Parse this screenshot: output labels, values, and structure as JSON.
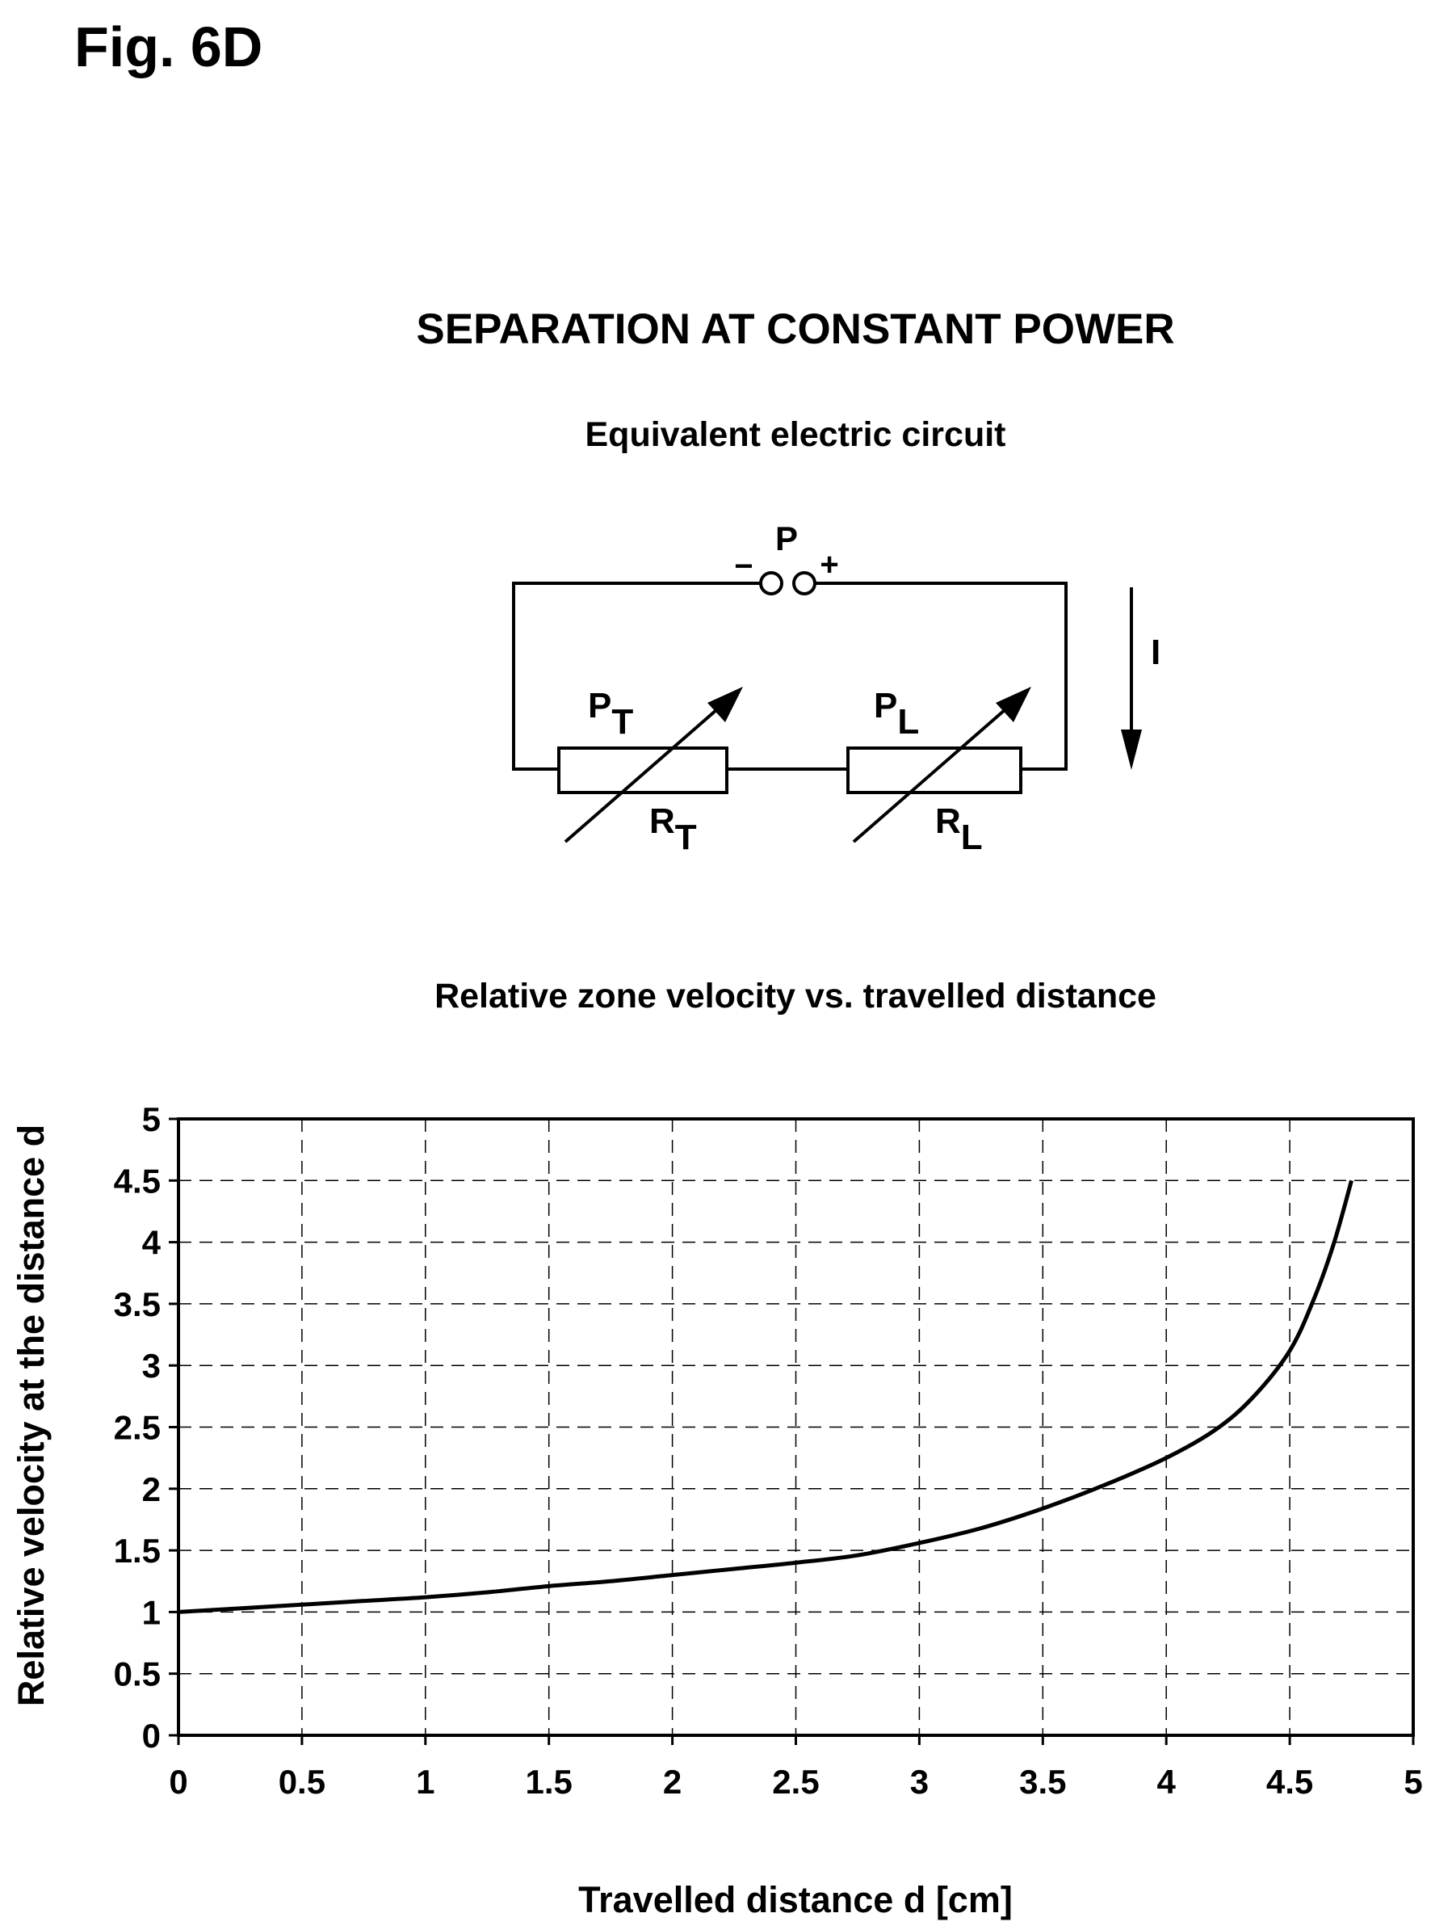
{
  "figure_label": "Fig. 6D",
  "heading": "SEPARATION AT CONSTANT POWER",
  "circuit": {
    "title": "Equivalent electric circuit",
    "source_label": "P",
    "minus_sign": "−",
    "plus_sign": "+",
    "current_label": "I",
    "resistor_t": {
      "power_main": "P",
      "power_sub": "T",
      "res_main": "R",
      "res_sub": "T"
    },
    "resistor_l": {
      "power_main": "P",
      "power_sub": "L",
      "res_main": "R",
      "res_sub": "L"
    }
  },
  "chart_data": {
    "type": "line",
    "title": "Relative zone velocity vs. travelled distance",
    "xlabel": "Travelled distance d [cm]",
    "ylabel": "Relative velocity at the distance d",
    "xlim": [
      0,
      5
    ],
    "ylim": [
      0,
      5
    ],
    "xticks": [
      "0",
      "0.5",
      "1",
      "1.5",
      "2",
      "2.5",
      "3",
      "3.5",
      "4",
      "4.5",
      "5"
    ],
    "yticks": [
      "0",
      "0.5",
      "1",
      "1.5",
      "2",
      "2.5",
      "3",
      "3.5",
      "4",
      "4.5",
      "5"
    ],
    "grid": true,
    "series": [
      {
        "x": [
          0,
          0.25,
          0.5,
          0.75,
          1,
          1.25,
          1.5,
          1.75,
          2,
          2.25,
          2.5,
          2.75,
          3,
          3.25,
          3.5,
          3.75,
          4,
          4.2,
          4.35,
          4.5,
          4.6,
          4.68,
          4.75
        ],
        "y": [
          1.0,
          1.03,
          1.06,
          1.09,
          1.12,
          1.16,
          1.21,
          1.25,
          1.3,
          1.35,
          1.4,
          1.46,
          1.56,
          1.68,
          1.84,
          2.03,
          2.25,
          2.48,
          2.74,
          3.12,
          3.55,
          4.0,
          4.5
        ]
      }
    ]
  }
}
